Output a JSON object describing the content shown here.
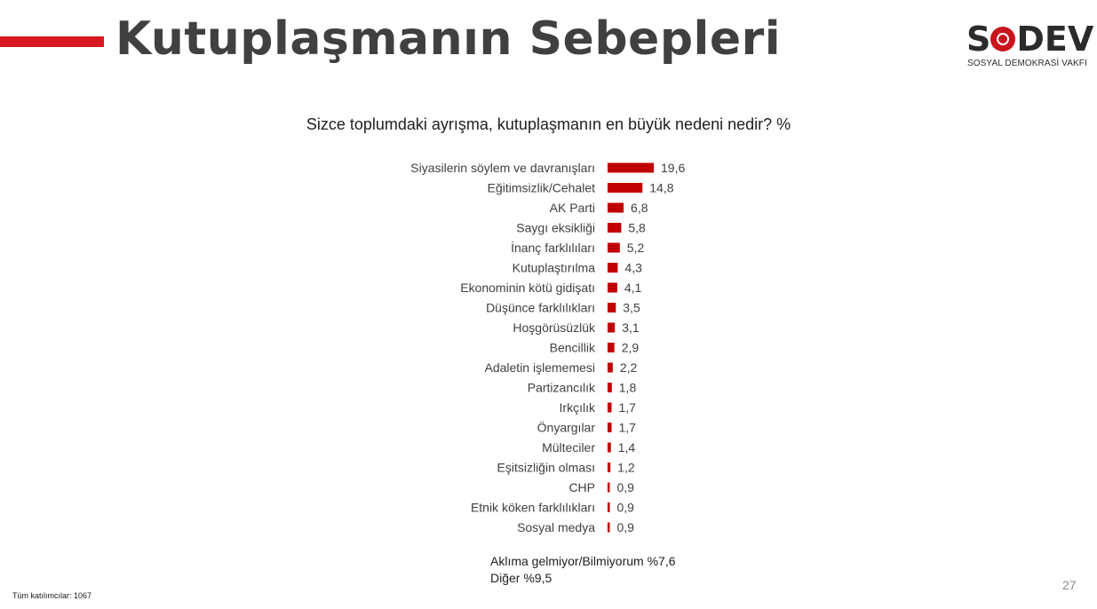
{
  "header": {
    "title": "Kutuplaşmanın Sebepleri",
    "logo_word": "SODEV",
    "logo_subtitle": "SOSYAL DEMOKRASİ VAKFI",
    "accent_color": "#d71920"
  },
  "chart_data": {
    "type": "bar",
    "orientation": "horizontal",
    "title": "Sizce toplumdaki ayrışma, kutuplaşmanın en büyük nedeni nedir? %",
    "xlabel": "",
    "ylabel": "",
    "categories": [
      "Siyasilerin söylem ve davranışları",
      "Eğitimsizlik/Cehalet",
      "AK Parti",
      "Saygı eksikliği",
      "İnanç farklılıları",
      "Kutuplaştırılma",
      "Ekonominin kötü gidişatı",
      "Düşünce farklılıkları",
      "Hoşgörüsüzlük",
      "Bencillik",
      "Adaletin işlememesi",
      "Partizancılık",
      "Irkçılık",
      "Önyargılar",
      "Mülteciler",
      "Eşitsizliğin olması",
      "CHP",
      "Etnik köken farklılıkları",
      "Sosyal medya"
    ],
    "values": [
      19.6,
      14.8,
      6.8,
      5.8,
      5.2,
      4.3,
      4.1,
      3.5,
      3.1,
      2.9,
      2.2,
      1.8,
      1.7,
      1.7,
      1.4,
      1.2,
      0.9,
      0.9,
      0.9
    ],
    "value_labels": [
      "19,6",
      "14,8",
      "6,8",
      "5,8",
      "5,2",
      "4,3",
      "4,1",
      "3,5",
      "3,1",
      "2,9",
      "2,2",
      "1,8",
      "1,7",
      "1,7",
      "1,4",
      "1,2",
      "0,9",
      "0,9",
      "0,9"
    ],
    "bar_color": "#c00000",
    "grid": false,
    "legend": "none"
  },
  "notes": {
    "line1": "Aklıma gelmiyor/Bilmiyorum %7,6",
    "line2": "Diğer %9,5"
  },
  "footer": {
    "participants": "Tüm katılımcılar: 1067",
    "page_number": "27"
  }
}
